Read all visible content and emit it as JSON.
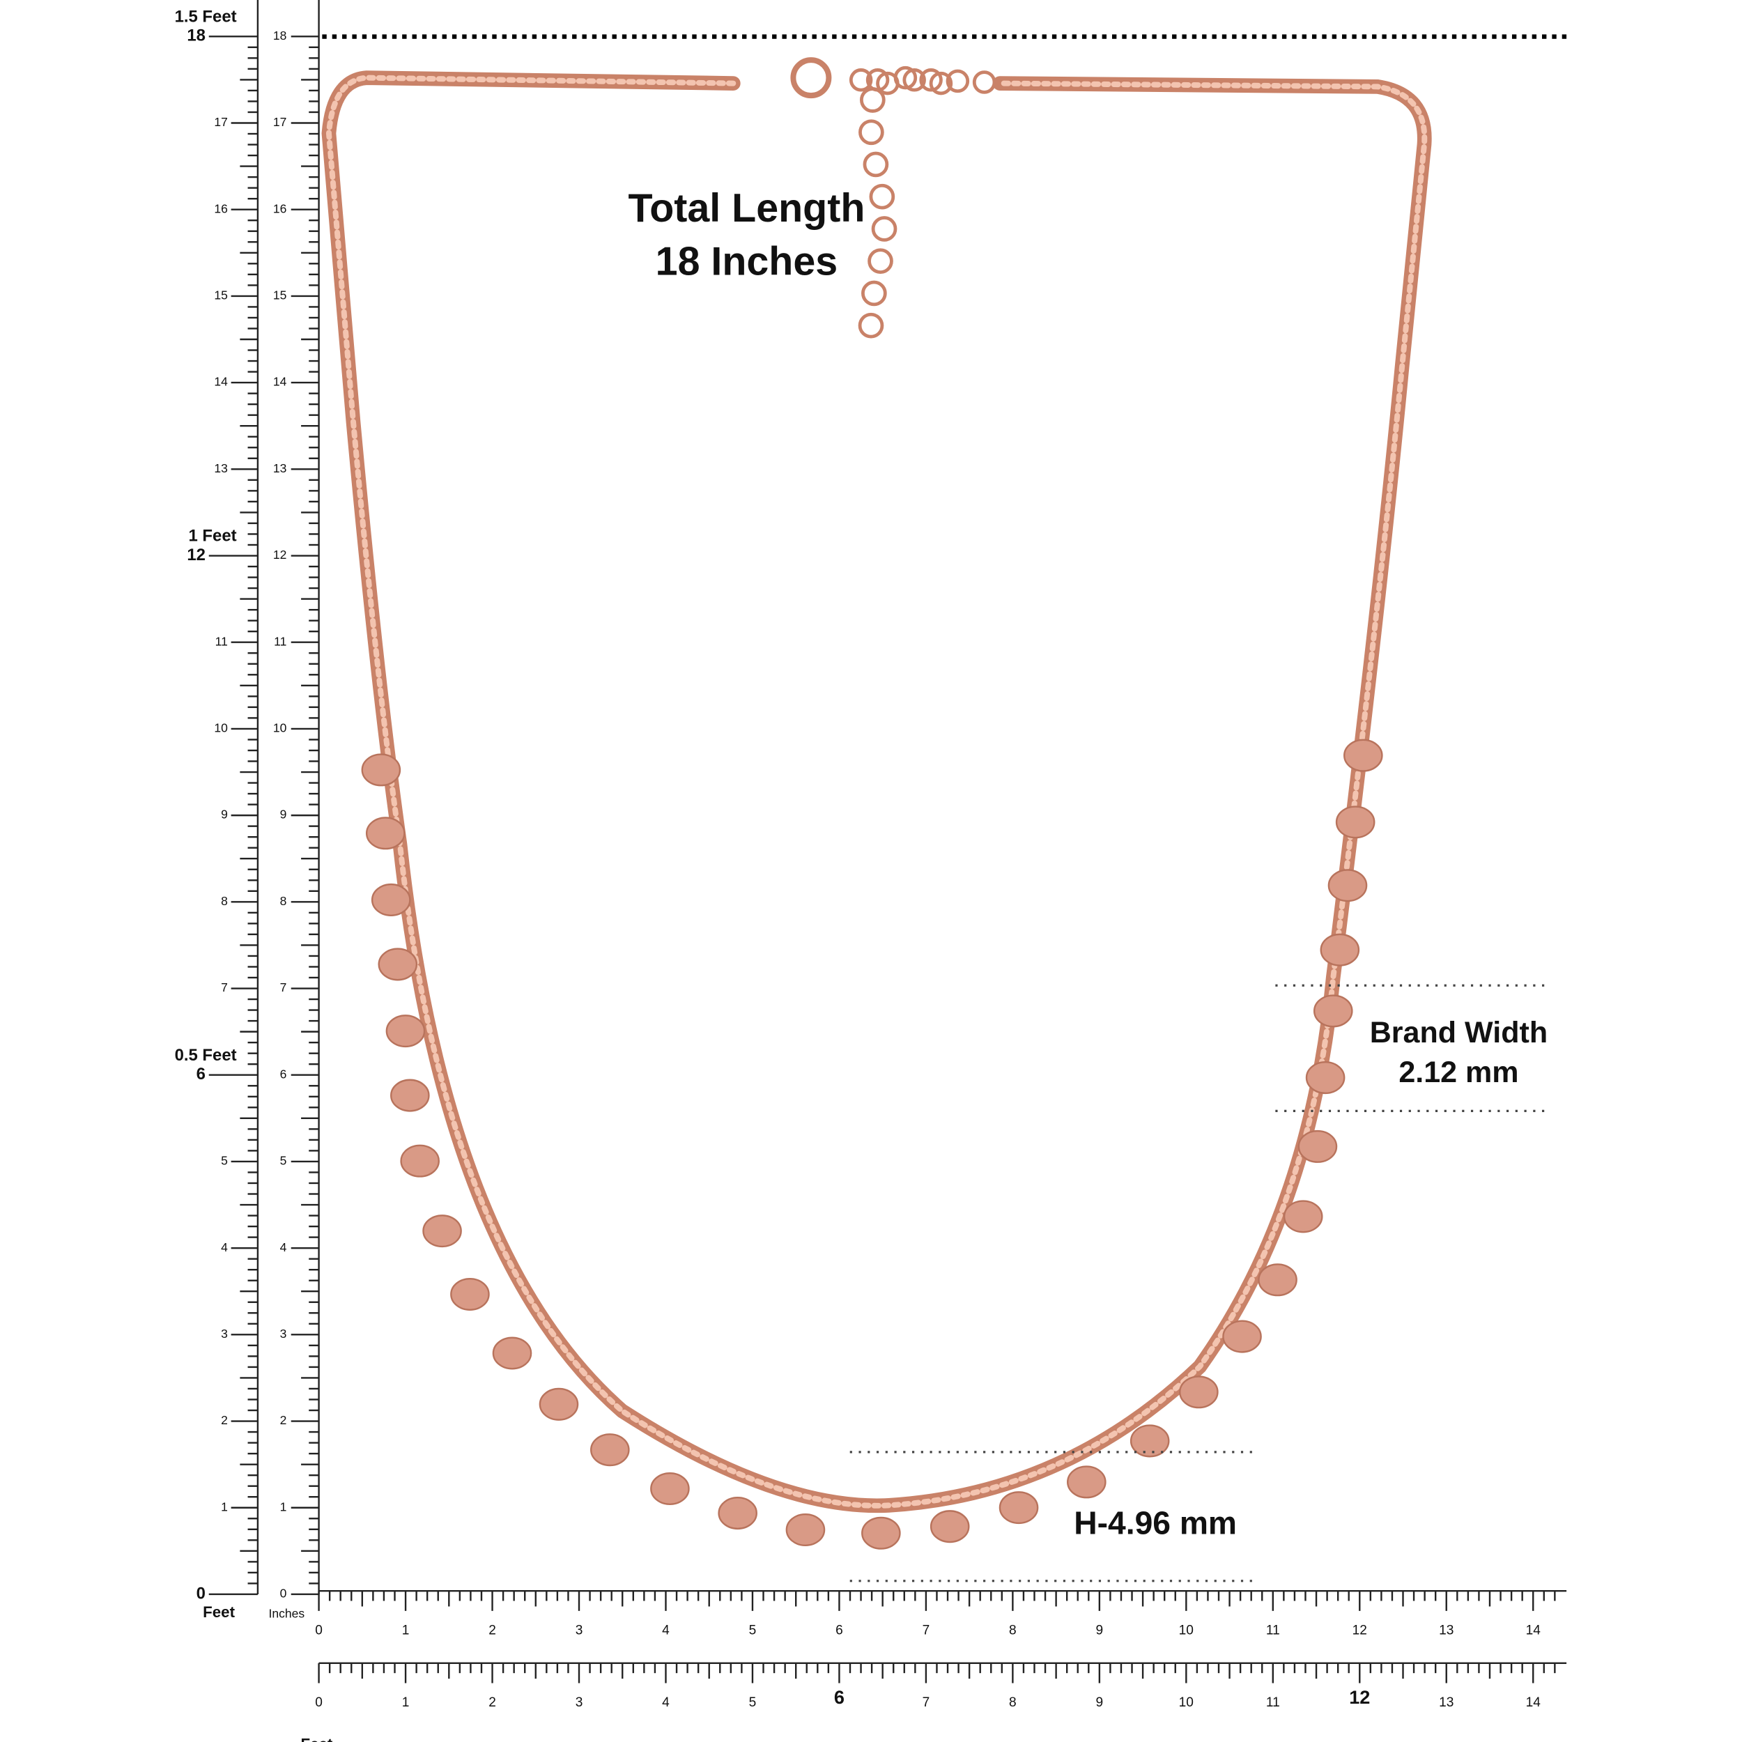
{
  "annotations": {
    "total_length": [
      "Total Length",
      "18 Inches"
    ],
    "band_width": [
      "Brand Width",
      "2.12 mm"
    ],
    "height": "H-4.96 mm"
  },
  "left_ruler": {
    "outer_inch_labels": [
      0,
      1,
      2,
      3,
      4,
      5,
      6,
      7,
      8,
      9,
      10,
      11,
      12,
      13,
      14,
      15,
      16,
      17,
      18
    ],
    "feet_labels": [
      "0.5 Feet",
      "1 Feet",
      "1.5 Feet"
    ],
    "unit": "Feet",
    "inner_inch_labels": [
      0,
      1,
      2,
      3,
      4,
      5,
      6,
      7,
      8,
      9,
      10,
      11,
      12,
      13,
      14,
      15,
      16,
      17,
      18
    ],
    "inner_unit": "Inches"
  },
  "bottom_ruler": {
    "inch_labels": [
      0,
      1,
      2,
      3,
      4,
      5,
      6,
      7,
      8,
      9,
      10,
      11,
      12,
      13,
      14
    ]
  },
  "feet_ruler": {
    "inch_labels": [
      0,
      1,
      2,
      3,
      4,
      5,
      6,
      7,
      8,
      9,
      10,
      11,
      12,
      13,
      14
    ],
    "unit": "Feet",
    "feet_labels": [
      "0.5 Feet",
      "1 Feet"
    ]
  }
}
